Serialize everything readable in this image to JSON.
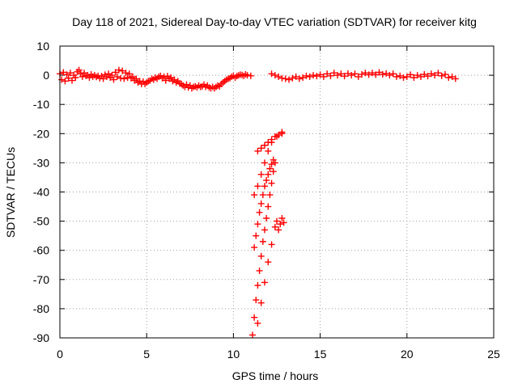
{
  "chart_data": {
    "type": "scatter",
    "title": "Day 118 of 2021, Sidereal Day-to-day VTEC variation (SDTVAR) for receiver kitg",
    "xlabel": "GPS time / hours",
    "ylabel": "SDTVAR / TECUs",
    "xlim": [
      0,
      25
    ],
    "ylim": [
      -90,
      10
    ],
    "xticks": [
      0,
      5,
      10,
      15,
      20,
      25
    ],
    "yticks": [
      -90,
      -80,
      -70,
      -60,
      -50,
      -40,
      -30,
      -20,
      -10,
      0,
      10
    ],
    "grid": true,
    "legend": "none",
    "marker": "plus",
    "color": "#ff0000",
    "series": [
      {
        "points": [
          [
            0.0,
            0.5
          ],
          [
            0.1,
            -1.5
          ],
          [
            0.2,
            1.0
          ],
          [
            0.3,
            -2.0
          ],
          [
            0.4,
            0.2
          ],
          [
            0.5,
            -1.0
          ],
          [
            0.6,
            0.8
          ],
          [
            0.7,
            -1.8
          ],
          [
            0.8,
            0.0
          ],
          [
            0.9,
            -0.8
          ],
          [
            1.0,
            1.2
          ],
          [
            1.1,
            1.8
          ],
          [
            1.2,
            0.5
          ],
          [
            1.3,
            -0.5
          ],
          [
            1.4,
            0.8
          ],
          [
            1.5,
            -0.2
          ],
          [
            1.6,
            0.0
          ],
          [
            1.7,
            -0.8
          ],
          [
            1.8,
            0.3
          ],
          [
            1.9,
            -0.5
          ],
          [
            2.0,
            0.0
          ],
          [
            2.1,
            -0.6
          ],
          [
            2.2,
            -0.2
          ],
          [
            2.3,
            -1.0
          ],
          [
            2.4,
            -0.3
          ],
          [
            2.5,
            -1.2
          ],
          [
            2.6,
            0.2
          ],
          [
            2.7,
            -0.5
          ],
          [
            2.8,
            0.5
          ],
          [
            2.9,
            -0.8
          ],
          [
            3.0,
            0.0
          ],
          [
            3.1,
            -1.5
          ],
          [
            3.2,
            1.0
          ],
          [
            3.3,
            -0.5
          ],
          [
            3.4,
            1.8
          ],
          [
            3.5,
            -1.0
          ],
          [
            3.6,
            1.5
          ],
          [
            3.7,
            -1.2
          ],
          [
            3.8,
            0.8
          ],
          [
            3.9,
            -0.8
          ],
          [
            4.0,
            0.5
          ],
          [
            4.1,
            -1.0
          ],
          [
            4.2,
            -0.5
          ],
          [
            4.3,
            -1.8
          ],
          [
            4.4,
            -1.2
          ],
          [
            4.5,
            -2.5
          ],
          [
            4.6,
            -2.0
          ],
          [
            4.7,
            -3.0
          ],
          [
            4.8,
            -2.2
          ],
          [
            4.9,
            -3.0
          ],
          [
            5.0,
            -2.5
          ],
          [
            5.1,
            -2.0
          ],
          [
            5.2,
            -1.8
          ],
          [
            5.3,
            -1.2
          ],
          [
            5.4,
            -1.5
          ],
          [
            5.5,
            -0.8
          ],
          [
            5.6,
            -1.2
          ],
          [
            5.7,
            -0.5
          ],
          [
            5.8,
            -0.2
          ],
          [
            5.9,
            -1.0
          ],
          [
            6.0,
            -0.5
          ],
          [
            6.1,
            -1.8
          ],
          [
            6.2,
            -0.3
          ],
          [
            6.3,
            -1.2
          ],
          [
            6.4,
            -0.8
          ],
          [
            6.5,
            -2.0
          ],
          [
            6.6,
            -1.5
          ],
          [
            6.7,
            -2.5
          ],
          [
            6.8,
            -2.0
          ],
          [
            6.9,
            -2.8
          ],
          [
            7.0,
            -3.0
          ],
          [
            7.1,
            -3.5
          ],
          [
            7.2,
            -4.0
          ],
          [
            7.3,
            -3.2
          ],
          [
            7.4,
            -4.2
          ],
          [
            7.5,
            -3.5
          ],
          [
            7.6,
            -4.5
          ],
          [
            7.7,
            -4.0
          ],
          [
            7.8,
            -3.8
          ],
          [
            7.9,
            -4.2
          ],
          [
            8.0,
            -3.5
          ],
          [
            8.1,
            -4.0
          ],
          [
            8.2,
            -3.8
          ],
          [
            8.3,
            -3.2
          ],
          [
            8.4,
            -4.0
          ],
          [
            8.5,
            -3.5
          ],
          [
            8.6,
            -4.2
          ],
          [
            8.7,
            -4.5
          ],
          [
            8.8,
            -4.0
          ],
          [
            8.9,
            -4.5
          ],
          [
            9.0,
            -4.0
          ],
          [
            9.1,
            -3.5
          ],
          [
            9.2,
            -3.8
          ],
          [
            9.3,
            -3.0
          ],
          [
            9.4,
            -2.5
          ],
          [
            9.5,
            -2.0
          ],
          [
            9.6,
            -1.5
          ],
          [
            9.7,
            -1.2
          ],
          [
            9.8,
            -1.0
          ],
          [
            9.9,
            -0.5
          ],
          [
            10.0,
            -0.2
          ],
          [
            10.1,
            -0.8
          ],
          [
            10.2,
            -0.3
          ],
          [
            10.3,
            0.0
          ],
          [
            10.4,
            0.2
          ],
          [
            10.5,
            0.1
          ],
          [
            10.6,
            -0.2
          ],
          [
            10.7,
            0.3
          ],
          [
            10.8,
            0.0
          ],
          [
            11.0,
            -0.2
          ],
          [
            11.2,
            -41.0
          ],
          [
            11.4,
            -38.0
          ],
          [
            11.6,
            -34.0
          ],
          [
            11.8,
            -30.0
          ],
          [
            12.0,
            -26.0
          ],
          [
            12.2,
            -23.0
          ],
          [
            12.5,
            -21.0
          ],
          [
            12.8,
            -19.5
          ],
          [
            11.4,
            -26.0
          ],
          [
            11.6,
            -25.0
          ],
          [
            11.8,
            -24.0
          ],
          [
            12.0,
            -23.0
          ],
          [
            12.2,
            -22.0
          ],
          [
            12.4,
            -21.0
          ],
          [
            12.6,
            -20.5
          ],
          [
            12.8,
            -20.0
          ],
          [
            11.2,
            -59.0
          ],
          [
            11.3,
            -55.0
          ],
          [
            11.4,
            -51.0
          ],
          [
            11.5,
            -47.0
          ],
          [
            11.6,
            -44.0
          ],
          [
            11.7,
            -41.0
          ],
          [
            11.8,
            -38.0
          ],
          [
            11.9,
            -36.0
          ],
          [
            12.0,
            -34.0
          ],
          [
            12.1,
            -32.0
          ],
          [
            12.2,
            -30.5
          ],
          [
            12.3,
            -29.0
          ],
          [
            11.1,
            -89.0
          ],
          [
            11.2,
            -83.0
          ],
          [
            11.3,
            -77.0
          ],
          [
            11.4,
            -72.0
          ],
          [
            11.5,
            -67.0
          ],
          [
            11.6,
            -62.0
          ],
          [
            11.7,
            -57.0
          ],
          [
            11.8,
            -53.0
          ],
          [
            11.9,
            -49.0
          ],
          [
            12.0,
            -45.0
          ],
          [
            12.1,
            -41.0
          ],
          [
            12.2,
            -37.0
          ],
          [
            12.3,
            -33.0
          ],
          [
            12.4,
            -30.0
          ],
          [
            11.4,
            -85.0
          ],
          [
            11.6,
            -78.0
          ],
          [
            11.8,
            -71.0
          ],
          [
            12.0,
            -64.0
          ],
          [
            12.2,
            -58.0
          ],
          [
            12.4,
            -52.0
          ],
          [
            12.5,
            -50.0
          ],
          [
            12.6,
            -53.0
          ],
          [
            12.7,
            -51.0
          ],
          [
            12.8,
            -49.0
          ],
          [
            12.9,
            -50.5
          ],
          [
            12.2,
            0.5
          ],
          [
            12.4,
            0.0
          ],
          [
            12.6,
            -0.5
          ],
          [
            12.8,
            -1.0
          ],
          [
            13.0,
            -1.2
          ],
          [
            13.2,
            -1.5
          ],
          [
            13.4,
            -1.0
          ],
          [
            13.6,
            -0.5
          ],
          [
            13.8,
            -1.2
          ],
          [
            14.0,
            -0.8
          ],
          [
            14.2,
            -0.2
          ],
          [
            14.4,
            -0.5
          ],
          [
            14.6,
            0.0
          ],
          [
            14.8,
            -0.3
          ],
          [
            15.0,
            0.2
          ],
          [
            15.2,
            -0.5
          ],
          [
            15.4,
            0.5
          ],
          [
            15.6,
            -0.2
          ],
          [
            15.8,
            0.8
          ],
          [
            16.0,
            0.0
          ],
          [
            16.2,
            0.5
          ],
          [
            16.4,
            -0.3
          ],
          [
            16.6,
            0.6
          ],
          [
            16.8,
            0.0
          ],
          [
            17.0,
            0.5
          ],
          [
            17.2,
            -0.5
          ],
          [
            17.4,
            0.3
          ],
          [
            17.6,
            0.8
          ],
          [
            17.8,
            0.2
          ],
          [
            18.0,
            0.8
          ],
          [
            18.2,
            0.2
          ],
          [
            18.4,
            1.0
          ],
          [
            18.6,
            0.3
          ],
          [
            18.8,
            0.6
          ],
          [
            19.0,
            0.0
          ],
          [
            19.2,
            0.5
          ],
          [
            19.4,
            -0.5
          ],
          [
            19.6,
            -0.2
          ],
          [
            19.8,
            -0.8
          ],
          [
            20.0,
            -0.5
          ],
          [
            20.2,
            0.2
          ],
          [
            20.4,
            -0.8
          ],
          [
            20.6,
            0.0
          ],
          [
            20.8,
            -0.5
          ],
          [
            21.0,
            0.3
          ],
          [
            21.2,
            -0.3
          ],
          [
            21.4,
            0.5
          ],
          [
            21.6,
            0.0
          ],
          [
            21.8,
            0.8
          ],
          [
            22.0,
            -0.2
          ],
          [
            22.2,
            0.3
          ],
          [
            22.4,
            -0.8
          ],
          [
            22.6,
            -0.5
          ],
          [
            22.8,
            -1.2
          ]
        ]
      }
    ]
  }
}
